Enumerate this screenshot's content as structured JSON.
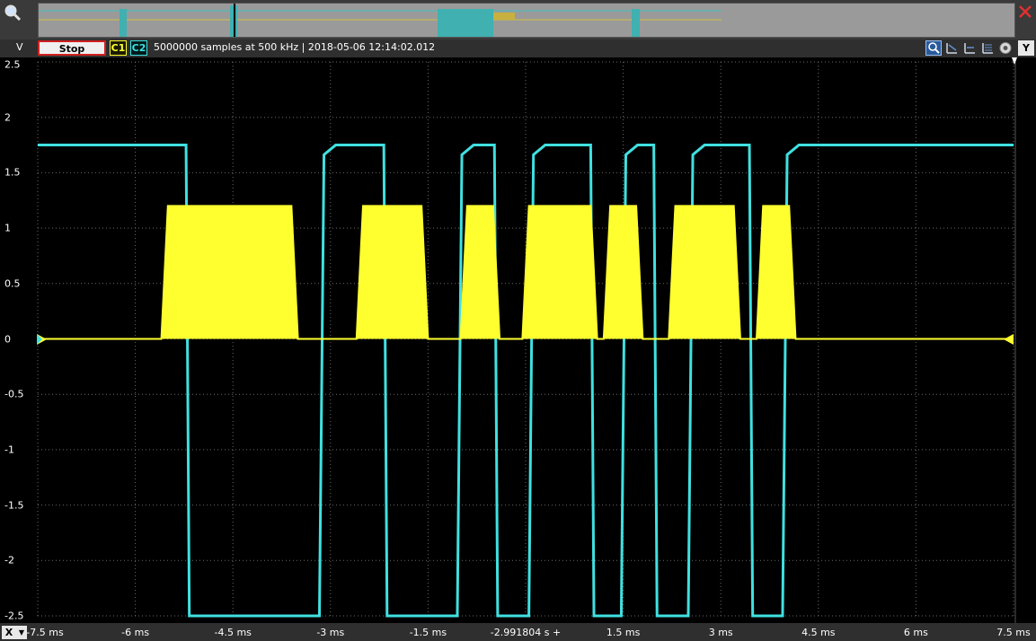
{
  "toolbar": {
    "volt_unit": "V",
    "stop_label": "Stop",
    "c1_label": "C1",
    "c2_label": "C2",
    "status_text": "5000000 samples at 500 kHz | 2018-05-06 12:14:02.012",
    "y_label": "Y"
  },
  "xaxis": {
    "x_label": "X",
    "dropdown_icon": "chevron-down-icon"
  },
  "icons": [
    "zoom-icon",
    "close-icon",
    "zoom-fit-icon",
    "cursor-icon",
    "measure-icon",
    "list-icon",
    "settings-icon"
  ],
  "colors": {
    "c1": "#ffff30",
    "c2": "#40e0e0",
    "grid": "#6a6a6a",
    "background": "#000000"
  },
  "chart_data": {
    "type": "line",
    "x_unit": "ms",
    "y_unit": "V",
    "xlim": [
      -7.5,
      7.5
    ],
    "ylim": [
      -2.5,
      2.5
    ],
    "x_ticks": [
      "-7.5 ms",
      "-6 ms",
      "-4.5 ms",
      "-3 ms",
      "-1.5 ms",
      "-2.991804 s +",
      "1.5 ms",
      "3 ms",
      "4.5 ms",
      "6 ms",
      "7.5 ms"
    ],
    "x_tick_values": [
      -7.5,
      -6,
      -4.5,
      -3,
      -1.5,
      0,
      1.5,
      3,
      4.5,
      6,
      7.5
    ],
    "y_ticks": [
      "2.5",
      "2",
      "1.5",
      "1",
      "0.5",
      "0",
      "-0.5",
      "-1",
      "-1.5",
      "-2",
      "-2.5"
    ],
    "y_tick_values": [
      2.5,
      2,
      1.5,
      1,
      0.5,
      0,
      -0.5,
      -1,
      -1.5,
      -2,
      -2.5
    ],
    "grid": true,
    "series": [
      {
        "name": "C2",
        "color": "#40e0e0",
        "high": 1.75,
        "low": -2.5,
        "low_intervals": [
          [
            -5.22,
            -3.17
          ],
          [
            -2.18,
            -1.05
          ],
          [
            -0.48,
            0.05
          ],
          [
            1.0,
            1.47
          ],
          [
            1.97,
            2.5
          ],
          [
            3.44,
            3.95
          ]
        ]
      },
      {
        "name": "C1",
        "color": "#ffff30",
        "high": 1.2,
        "low": 0,
        "high_intervals": [
          [
            -5.6,
            -3.6
          ],
          [
            -2.6,
            -1.6
          ],
          [
            -1.0,
            -0.5
          ],
          [
            -0.05,
            1.0
          ],
          [
            1.2,
            1.7
          ],
          [
            2.2,
            3.2
          ],
          [
            3.55,
            4.05
          ]
        ]
      }
    ]
  }
}
